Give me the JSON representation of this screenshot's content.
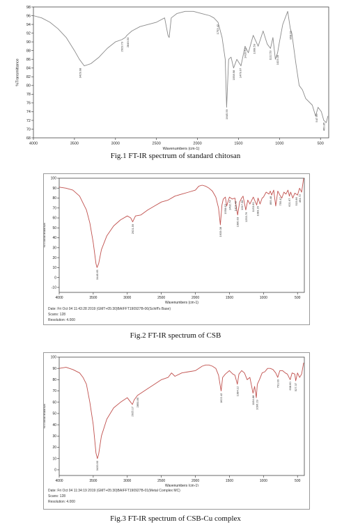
{
  "figures": [
    {
      "caption": "Fig.1 FT-IR spectrum of standard chitosan",
      "chart_data": {
        "type": "line",
        "xlabel": "Wavenumbers (cm-1)",
        "ylabel": "%Transmittance",
        "xlim": [
          4000,
          400
        ],
        "ylim": [
          68,
          98
        ],
        "x_ticks": [
          4000,
          3500,
          3000,
          2500,
          2000,
          1500,
          1000,
          500
        ],
        "y_ticks": [
          68,
          70,
          72,
          74,
          76,
          78,
          80,
          82,
          84,
          86,
          88,
          90,
          92,
          94,
          96,
          98
        ],
        "series": [
          {
            "color": "#8a8a8a",
            "x": [
              4000,
              3900,
              3800,
              3700,
              3600,
              3500,
              3440,
              3380,
              3300,
              3200,
              3100,
              3000,
              2923,
              2880,
              2860,
              2800,
              2700,
              2600,
              2500,
              2400,
              2360,
              2345,
              2320,
              2250,
              2150,
              2050,
              1950,
              1850,
              1800,
              1750,
              1700,
              1662,
              1645,
              1620,
              1590,
              1560,
              1520,
              1470,
              1420,
              1380,
              1320,
              1260,
              1200,
              1150,
              1110,
              1080,
              1050,
              1023,
              1000,
              960,
              900,
              868,
              850,
              800,
              760,
              720,
              680,
              600,
              560,
              530,
              490,
              460,
              430,
              410
            ],
            "y": [
              96.0,
              95.5,
              94.5,
              93.0,
              91.0,
              88.0,
              86.0,
              84.5,
              85.0,
              86.5,
              88.5,
              90.0,
              90.5,
              91.0,
              91.5,
              92.5,
              93.5,
              94.0,
              94.5,
              95.5,
              91.5,
              91.0,
              95.5,
              96.5,
              97.0,
              97.0,
              96.5,
              96.0,
              95.5,
              94.5,
              91.0,
              86.0,
              75.0,
              86.0,
              86.5,
              84.0,
              86.0,
              84.5,
              89.0,
              87.5,
              91.5,
              89.0,
              92.5,
              89.5,
              88.5,
              91.0,
              86.0,
              87.5,
              90.0,
              94.0,
              97.0,
              93.0,
              92.0,
              85.0,
              80.0,
              79.0,
              77.0,
              75.5,
              73.0,
              75.0,
              74.0,
              72.0,
              71.5,
              73.0
            ]
          }
        ],
        "peak_labels": [
          {
            "label": "3429.98",
            "x": 3430,
            "y": 84.5
          },
          {
            "label": "2923.73",
            "x": 2923,
            "y": 90.5
          },
          {
            "label": "2849.53",
            "x": 2850,
            "y": 91.5
          },
          {
            "label": "1753.42",
            "x": 1753,
            "y": 94.5
          },
          {
            "label": "1645.59",
            "x": 1645,
            "y": 75.0
          },
          {
            "label": "1558.98",
            "x": 1560,
            "y": 84.0
          },
          {
            "label": "1479.97",
            "x": 1480,
            "y": 84.5
          },
          {
            "label": "1426.63",
            "x": 1420,
            "y": 89.0
          },
          {
            "label": "1309.59",
            "x": 1310,
            "y": 90.0
          },
          {
            "label": "1112.53",
            "x": 1112,
            "y": 88.5
          },
          {
            "label": "1023.35",
            "x": 1023,
            "y": 87.5
          },
          {
            "label": "868.03",
            "x": 868,
            "y": 93.0
          },
          {
            "label": "547.96",
            "x": 548,
            "y": 74.0
          },
          {
            "label": "460.85",
            "x": 460,
            "y": 72.0
          }
        ]
      }
    },
    {
      "caption": "Fig.2 FT-IR spectrum of CSB",
      "footer": {
        "date": "Date: Fri Oct 04 11:43:28 2019 (GMT+05:30)BAIFFT190927B-06(Schiff's Base)",
        "scans": "Scans: 128",
        "resolution": "Resolution: 4.000"
      },
      "chart_data": {
        "type": "line",
        "xlabel": "Wavenumbers (cm-1)",
        "ylabel": "%Transmittance",
        "xlim": [
          4000,
          400
        ],
        "ylim": [
          -15,
          100
        ],
        "x_ticks": [
          4000,
          3500,
          3000,
          2500,
          2000,
          1500,
          1000,
          500
        ],
        "y_ticks": [
          100,
          90,
          80,
          70,
          60,
          50,
          40,
          30,
          20,
          10,
          0,
          -10
        ],
        "series": [
          {
            "color": "#c0504d",
            "x": [
              4000,
              3900,
              3800,
              3700,
              3600,
              3550,
              3500,
              3460,
              3445,
              3420,
              3380,
              3300,
              3200,
              3100,
              3000,
              2950,
              2921,
              2880,
              2800,
              2700,
              2600,
              2500,
              2400,
              2300,
              2200,
              2100,
              2000,
              1950,
              1900,
              1850,
              1800,
              1750,
              1700,
              1660,
              1633,
              1610,
              1590,
              1560,
              1540,
              1500,
              1460,
              1420,
              1380,
              1350,
              1320,
              1300,
              1260,
              1230,
              1200,
              1150,
              1100,
              1080,
              1050,
              1020,
              1000,
              960,
              920,
              900,
              880,
              850,
              820,
              790,
              760,
              730,
              700,
              670,
              640,
              620,
              600,
              570,
              540,
              500,
              470,
              440,
              410
            ],
            "y": [
              91,
              90,
              88,
              82,
              68,
              55,
              35,
              14,
              10,
              14,
              28,
              42,
              52,
              58,
              62,
              60,
              56,
              62,
              63,
              68,
              72,
              76,
              78,
              82,
              84,
              86,
              88,
              92,
              93,
              92,
              90,
              87,
              81,
              70,
              53,
              73,
              79,
              81,
              72,
              81,
              79,
              80,
              63,
              76,
              80,
              82,
              68,
              78,
              74,
              81,
              73,
              80,
              74,
              80,
              81,
              86,
              84,
              87,
              83,
              88,
              72,
              87,
              83,
              80,
              86,
              84,
              88,
              82,
              86,
              80,
              85,
              83,
              90,
              86,
              100
            ]
          }
        ],
        "peak_labels": [
          {
            "label": "3445.65",
            "x": 3445,
            "y": 10
          },
          {
            "label": "2921.59",
            "x": 2921,
            "y": 56
          },
          {
            "label": "1633.08",
            "x": 1633,
            "y": 53
          },
          {
            "label": "1558.63",
            "x": 1560,
            "y": 76
          },
          {
            "label": "1492.74",
            "x": 1492,
            "y": 80
          },
          {
            "label": "1413.43",
            "x": 1413,
            "y": 79
          },
          {
            "label": "1380.03",
            "x": 1380,
            "y": 63
          },
          {
            "label": "1317.38",
            "x": 1317,
            "y": 80
          },
          {
            "label": "1253.76",
            "x": 1255,
            "y": 68
          },
          {
            "label": "1153.60",
            "x": 1153,
            "y": 78
          },
          {
            "label": "1083.20",
            "x": 1083,
            "y": 74
          },
          {
            "label": "895.48",
            "x": 895,
            "y": 84
          },
          {
            "label": "755.47",
            "x": 755,
            "y": 83
          },
          {
            "label": "621.67",
            "x": 621,
            "y": 82
          },
          {
            "label": "515.86",
            "x": 515,
            "y": 83
          },
          {
            "label": "464.72",
            "x": 464,
            "y": 86
          }
        ]
      }
    },
    {
      "caption": "Fig.3 FT-IR spectrum of CSB-Cu complex",
      "footer": {
        "date": "Date: Fri Oct 04 11:34:19 2019 (GMT+05:30)BAIFFT190927B-01(Metal Complex MC)",
        "scans": "Scans: 128",
        "resolution": "Resolution: 4.000"
      },
      "chart_data": {
        "type": "line",
        "xlabel": "Wavenumbers (cm-1)",
        "ylabel": "%Transmittance",
        "xlim": [
          4000,
          400
        ],
        "ylim": [
          -5,
          100
        ],
        "x_ticks": [
          4000,
          3500,
          3000,
          2500,
          2000,
          1500,
          1000,
          500
        ],
        "y_ticks": [
          100,
          90,
          80,
          70,
          60,
          50,
          40,
          30,
          20,
          10,
          0
        ],
        "series": [
          {
            "color": "#c0504d",
            "x": [
              4000,
              3900,
              3800,
              3700,
              3650,
              3600,
              3550,
              3500,
              3460,
              3440,
              3420,
              3380,
              3300,
              3200,
              3100,
              3000,
              2950,
              2925,
              2900,
              2850,
              2800,
              2700,
              2600,
              2500,
              2400,
              2350,
              2300,
              2200,
              2100,
              2000,
              1950,
              1900,
              1850,
              1800,
              1750,
              1700,
              1660,
              1622,
              1600,
              1560,
              1500,
              1450,
              1420,
              1384,
              1360,
              1320,
              1280,
              1240,
              1200,
              1154,
              1130,
              1106,
              1090,
              1060,
              1020,
              980,
              940,
              900,
              860,
              820,
              791,
              760,
              720,
              680,
              650,
              608,
              580,
              540,
              527,
              500,
              470,
              440,
              410
            ],
            "y": [
              90,
              91,
              89,
              86,
              82,
              76,
              60,
              40,
              15,
              10,
              14,
              30,
              45,
              55,
              60,
              64,
              60,
              58,
              62,
              66,
              68,
              72,
              76,
              80,
              82,
              86,
              83,
              86,
              87,
              88,
              90,
              92,
              93,
              93,
              92,
              90,
              84,
              70,
              82,
              85,
              88,
              85,
              84,
              76,
              85,
              88,
              86,
              80,
              82,
              68,
              74,
              64,
              76,
              80,
              86,
              87,
              90,
              90,
              89,
              86,
              82,
              88,
              88,
              86,
              85,
              80,
              86,
              85,
              79,
              86,
              82,
              85,
              95
            ]
          }
        ],
        "peak_labels": [
          {
            "label": "3433.93",
            "x": 3440,
            "y": 10
          },
          {
            "label": "2925.17",
            "x": 2925,
            "y": 58
          },
          {
            "label": "2850.85",
            "x": 2850,
            "y": 66
          },
          {
            "label": "1622.42",
            "x": 1622,
            "y": 70
          },
          {
            "label": "1384.12",
            "x": 1384,
            "y": 76
          },
          {
            "label": "1154.88",
            "x": 1154,
            "y": 68
          },
          {
            "label": "1096.19",
            "x": 1096,
            "y": 64
          },
          {
            "label": "791.00",
            "x": 791,
            "y": 82
          },
          {
            "label": "608.60",
            "x": 608,
            "y": 80
          },
          {
            "label": "527.37",
            "x": 527,
            "y": 79
          }
        ]
      }
    }
  ]
}
